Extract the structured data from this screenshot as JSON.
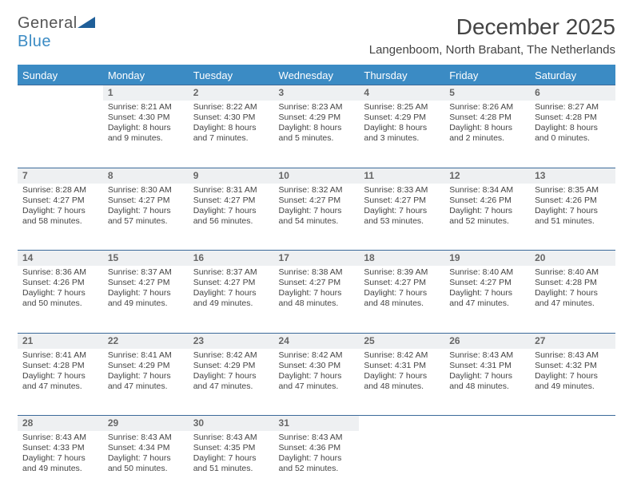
{
  "logo": {
    "word1": "General",
    "word2": "Blue"
  },
  "title": "December 2025",
  "subtitle": "Langenboom, North Brabant, The Netherlands",
  "colors": {
    "header_bg": "#3b8bc4",
    "header_text": "#ffffff",
    "daynum_bg": "#eef0f2",
    "border": "#3b6a9a",
    "text": "#444444"
  },
  "typography": {
    "title_fontsize": 28,
    "subtitle_fontsize": 15,
    "header_fontsize": 13,
    "cell_fontsize": 10.5
  },
  "weekdays": [
    "Sunday",
    "Monday",
    "Tuesday",
    "Wednesday",
    "Thursday",
    "Friday",
    "Saturday"
  ],
  "weeks": [
    [
      null,
      {
        "n": "1",
        "sr": "Sunrise: 8:21 AM",
        "ss": "Sunset: 4:30 PM",
        "dl": "Daylight: 8 hours and 9 minutes."
      },
      {
        "n": "2",
        "sr": "Sunrise: 8:22 AM",
        "ss": "Sunset: 4:30 PM",
        "dl": "Daylight: 8 hours and 7 minutes."
      },
      {
        "n": "3",
        "sr": "Sunrise: 8:23 AM",
        "ss": "Sunset: 4:29 PM",
        "dl": "Daylight: 8 hours and 5 minutes."
      },
      {
        "n": "4",
        "sr": "Sunrise: 8:25 AM",
        "ss": "Sunset: 4:29 PM",
        "dl": "Daylight: 8 hours and 3 minutes."
      },
      {
        "n": "5",
        "sr": "Sunrise: 8:26 AM",
        "ss": "Sunset: 4:28 PM",
        "dl": "Daylight: 8 hours and 2 minutes."
      },
      {
        "n": "6",
        "sr": "Sunrise: 8:27 AM",
        "ss": "Sunset: 4:28 PM",
        "dl": "Daylight: 8 hours and 0 minutes."
      }
    ],
    [
      {
        "n": "7",
        "sr": "Sunrise: 8:28 AM",
        "ss": "Sunset: 4:27 PM",
        "dl": "Daylight: 7 hours and 58 minutes."
      },
      {
        "n": "8",
        "sr": "Sunrise: 8:30 AM",
        "ss": "Sunset: 4:27 PM",
        "dl": "Daylight: 7 hours and 57 minutes."
      },
      {
        "n": "9",
        "sr": "Sunrise: 8:31 AM",
        "ss": "Sunset: 4:27 PM",
        "dl": "Daylight: 7 hours and 56 minutes."
      },
      {
        "n": "10",
        "sr": "Sunrise: 8:32 AM",
        "ss": "Sunset: 4:27 PM",
        "dl": "Daylight: 7 hours and 54 minutes."
      },
      {
        "n": "11",
        "sr": "Sunrise: 8:33 AM",
        "ss": "Sunset: 4:27 PM",
        "dl": "Daylight: 7 hours and 53 minutes."
      },
      {
        "n": "12",
        "sr": "Sunrise: 8:34 AM",
        "ss": "Sunset: 4:26 PM",
        "dl": "Daylight: 7 hours and 52 minutes."
      },
      {
        "n": "13",
        "sr": "Sunrise: 8:35 AM",
        "ss": "Sunset: 4:26 PM",
        "dl": "Daylight: 7 hours and 51 minutes."
      }
    ],
    [
      {
        "n": "14",
        "sr": "Sunrise: 8:36 AM",
        "ss": "Sunset: 4:26 PM",
        "dl": "Daylight: 7 hours and 50 minutes."
      },
      {
        "n": "15",
        "sr": "Sunrise: 8:37 AM",
        "ss": "Sunset: 4:27 PM",
        "dl": "Daylight: 7 hours and 49 minutes."
      },
      {
        "n": "16",
        "sr": "Sunrise: 8:37 AM",
        "ss": "Sunset: 4:27 PM",
        "dl": "Daylight: 7 hours and 49 minutes."
      },
      {
        "n": "17",
        "sr": "Sunrise: 8:38 AM",
        "ss": "Sunset: 4:27 PM",
        "dl": "Daylight: 7 hours and 48 minutes."
      },
      {
        "n": "18",
        "sr": "Sunrise: 8:39 AM",
        "ss": "Sunset: 4:27 PM",
        "dl": "Daylight: 7 hours and 48 minutes."
      },
      {
        "n": "19",
        "sr": "Sunrise: 8:40 AM",
        "ss": "Sunset: 4:27 PM",
        "dl": "Daylight: 7 hours and 47 minutes."
      },
      {
        "n": "20",
        "sr": "Sunrise: 8:40 AM",
        "ss": "Sunset: 4:28 PM",
        "dl": "Daylight: 7 hours and 47 minutes."
      }
    ],
    [
      {
        "n": "21",
        "sr": "Sunrise: 8:41 AM",
        "ss": "Sunset: 4:28 PM",
        "dl": "Daylight: 7 hours and 47 minutes."
      },
      {
        "n": "22",
        "sr": "Sunrise: 8:41 AM",
        "ss": "Sunset: 4:29 PM",
        "dl": "Daylight: 7 hours and 47 minutes."
      },
      {
        "n": "23",
        "sr": "Sunrise: 8:42 AM",
        "ss": "Sunset: 4:29 PM",
        "dl": "Daylight: 7 hours and 47 minutes."
      },
      {
        "n": "24",
        "sr": "Sunrise: 8:42 AM",
        "ss": "Sunset: 4:30 PM",
        "dl": "Daylight: 7 hours and 47 minutes."
      },
      {
        "n": "25",
        "sr": "Sunrise: 8:42 AM",
        "ss": "Sunset: 4:31 PM",
        "dl": "Daylight: 7 hours and 48 minutes."
      },
      {
        "n": "26",
        "sr": "Sunrise: 8:43 AM",
        "ss": "Sunset: 4:31 PM",
        "dl": "Daylight: 7 hours and 48 minutes."
      },
      {
        "n": "27",
        "sr": "Sunrise: 8:43 AM",
        "ss": "Sunset: 4:32 PM",
        "dl": "Daylight: 7 hours and 49 minutes."
      }
    ],
    [
      {
        "n": "28",
        "sr": "Sunrise: 8:43 AM",
        "ss": "Sunset: 4:33 PM",
        "dl": "Daylight: 7 hours and 49 minutes."
      },
      {
        "n": "29",
        "sr": "Sunrise: 8:43 AM",
        "ss": "Sunset: 4:34 PM",
        "dl": "Daylight: 7 hours and 50 minutes."
      },
      {
        "n": "30",
        "sr": "Sunrise: 8:43 AM",
        "ss": "Sunset: 4:35 PM",
        "dl": "Daylight: 7 hours and 51 minutes."
      },
      {
        "n": "31",
        "sr": "Sunrise: 8:43 AM",
        "ss": "Sunset: 4:36 PM",
        "dl": "Daylight: 7 hours and 52 minutes."
      },
      null,
      null,
      null
    ]
  ]
}
